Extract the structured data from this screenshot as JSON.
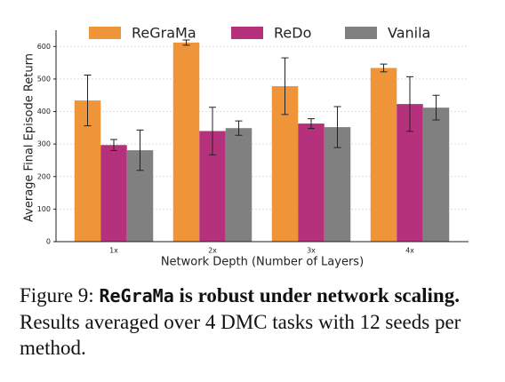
{
  "chart_data": {
    "type": "bar",
    "xlabel": "Network Depth (Number of Layers)",
    "ylabel": "Average Final Episode Return",
    "categories": [
      "1x",
      "2x",
      "3x",
      "4x"
    ],
    "series": [
      {
        "name": "ReGraMa",
        "color": "#f0943a",
        "values": [
          434,
          612,
          478,
          534
        ],
        "errors": [
          78,
          8,
          87,
          12
        ]
      },
      {
        "name": "ReDo",
        "color": "#b5317c",
        "values": [
          297,
          340,
          363,
          423
        ],
        "errors": [
          17,
          73,
          15,
          84
        ]
      },
      {
        "name": "Vanila",
        "color": "#808080",
        "values": [
          281,
          349,
          352,
          412
        ],
        "errors": [
          62,
          22,
          63,
          38
        ]
      }
    ],
    "ylim": [
      0,
      650
    ],
    "yticks": [
      0,
      100,
      200,
      300,
      400,
      500,
      600
    ],
    "grid": true,
    "legend": "top"
  },
  "caption": {
    "label": "Figure 9:",
    "code": "ReGraMa",
    "bold": "is robust under network scaling.",
    "text": "Results averaged over 4 DMC tasks with 12 seeds per method."
  }
}
